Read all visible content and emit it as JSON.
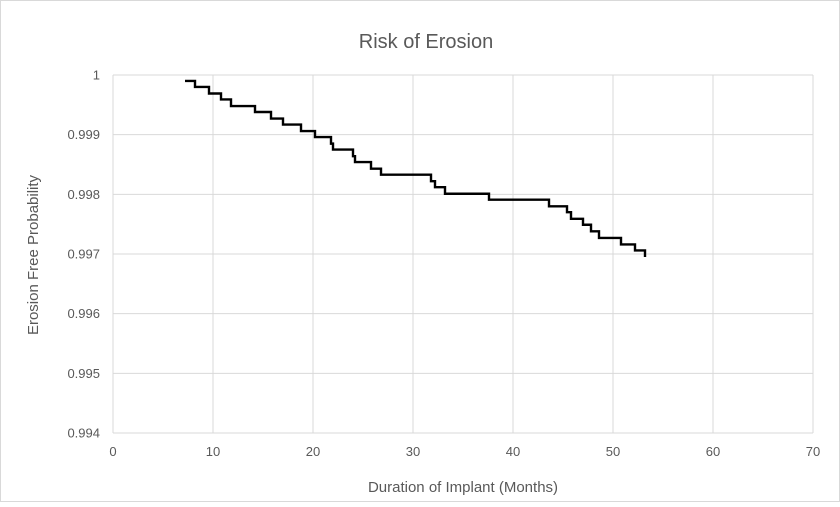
{
  "chart_data": {
    "type": "line",
    "title": "Risk of Erosion",
    "xlabel": "Duration of Implant (Months)",
    "ylabel": "Erosion Free Probability",
    "xlim": [
      0,
      70
    ],
    "ylim": [
      0.994,
      1
    ],
    "x_ticks": [
      0,
      10,
      20,
      30,
      40,
      50,
      60,
      70
    ],
    "y_ticks": [
      0.994,
      0.995,
      0.996,
      0.997,
      0.998,
      0.999,
      1
    ],
    "y_tick_labels": [
      "0.994",
      "0.995",
      "0.996",
      "0.997",
      "0.998",
      "0.999",
      "1"
    ],
    "grid": true,
    "legend": "none",
    "line_color": "#000000",
    "series": [
      {
        "step": true,
        "points": [
          [
            7.2,
            0.9999
          ],
          [
            8.2,
            0.9999
          ],
          [
            8.2,
            0.9998
          ],
          [
            9.6,
            0.9998
          ],
          [
            9.6,
            0.99969
          ],
          [
            10.8,
            0.99969
          ],
          [
            10.8,
            0.99959
          ],
          [
            11.8,
            0.99959
          ],
          [
            11.8,
            0.99948
          ],
          [
            14.2,
            0.99948
          ],
          [
            14.2,
            0.99938
          ],
          [
            15.8,
            0.99938
          ],
          [
            15.8,
            0.99927
          ],
          [
            17.0,
            0.99927
          ],
          [
            17.0,
            0.99917
          ],
          [
            18.8,
            0.99917
          ],
          [
            18.8,
            0.99906
          ],
          [
            20.2,
            0.99906
          ],
          [
            20.2,
            0.99896
          ],
          [
            21.8,
            0.99896
          ],
          [
            21.8,
            0.99885
          ],
          [
            22.0,
            0.99885
          ],
          [
            22.0,
            0.99875
          ],
          [
            24.0,
            0.99875
          ],
          [
            24.0,
            0.99864
          ],
          [
            24.2,
            0.99864
          ],
          [
            24.2,
            0.99854
          ],
          [
            25.8,
            0.99854
          ],
          [
            25.8,
            0.99843
          ],
          [
            26.8,
            0.99843
          ],
          [
            26.8,
            0.99833
          ],
          [
            31.8,
            0.99833
          ],
          [
            31.8,
            0.99822
          ],
          [
            32.2,
            0.99822
          ],
          [
            32.2,
            0.99812
          ],
          [
            33.2,
            0.99812
          ],
          [
            33.2,
            0.99801
          ],
          [
            37.6,
            0.99801
          ],
          [
            37.6,
            0.99791
          ],
          [
            43.6,
            0.99791
          ],
          [
            43.6,
            0.9978
          ],
          [
            45.4,
            0.9978
          ],
          [
            45.4,
            0.9977
          ],
          [
            45.8,
            0.9977
          ],
          [
            45.8,
            0.99759
          ],
          [
            47.0,
            0.99759
          ],
          [
            47.0,
            0.99749
          ],
          [
            47.8,
            0.99749
          ],
          [
            47.8,
            0.99738
          ],
          [
            48.6,
            0.99738
          ],
          [
            48.6,
            0.99727
          ],
          [
            50.8,
            0.99727
          ],
          [
            50.8,
            0.99716
          ],
          [
            52.2,
            0.99716
          ],
          [
            52.2,
            0.99706
          ],
          [
            53.2,
            0.99706
          ],
          [
            53.2,
            0.99695
          ]
        ]
      }
    ]
  }
}
